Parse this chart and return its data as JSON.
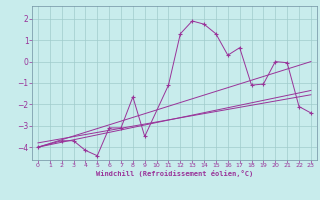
{
  "xlabel": "Windchill (Refroidissement éolien,°C)",
  "bg_color": "#c8ecec",
  "line_color": "#993399",
  "xlim": [
    -0.5,
    23.5
  ],
  "ylim": [
    -4.6,
    2.6
  ],
  "xticks": [
    0,
    1,
    2,
    3,
    4,
    5,
    6,
    7,
    8,
    9,
    10,
    11,
    12,
    13,
    14,
    15,
    16,
    17,
    18,
    19,
    20,
    21,
    22,
    23
  ],
  "yticks": [
    -4,
    -3,
    -2,
    -1,
    0,
    1,
    2
  ],
  "main_x": [
    0,
    2,
    3,
    4,
    5,
    6,
    7,
    8,
    9,
    11,
    12,
    13,
    14,
    15,
    16,
    17,
    18,
    19,
    20,
    21,
    22,
    23
  ],
  "main_y": [
    -4.0,
    -3.7,
    -3.7,
    -4.15,
    -4.4,
    -3.1,
    -3.1,
    -1.65,
    -3.5,
    -1.1,
    1.3,
    1.9,
    1.75,
    1.3,
    0.3,
    0.65,
    -1.1,
    -1.05,
    0.0,
    -0.05,
    -2.1,
    -2.4
  ],
  "trend1_x": [
    0,
    23
  ],
  "trend1_y": [
    -4.0,
    -1.35
  ],
  "trend2_x": [
    0,
    23
  ],
  "trend2_y": [
    -4.0,
    0.0
  ],
  "trend3_x": [
    0,
    23
  ],
  "trend3_y": [
    -3.8,
    -1.55
  ]
}
